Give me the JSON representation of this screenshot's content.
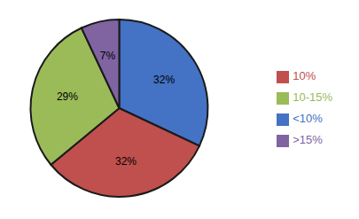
{
  "chart_data": {
    "type": "pie",
    "categories": [
      "<10%",
      "10%",
      "10-15%",
      ">15%"
    ],
    "values": [
      32,
      32,
      29,
      7
    ],
    "value_labels": [
      "32%",
      "32%",
      "29%",
      "7%"
    ],
    "colors": [
      "#4472C4",
      "#C0504D",
      "#9BBB59",
      "#8064A2"
    ],
    "data_labels": true,
    "legend": "right"
  }
}
